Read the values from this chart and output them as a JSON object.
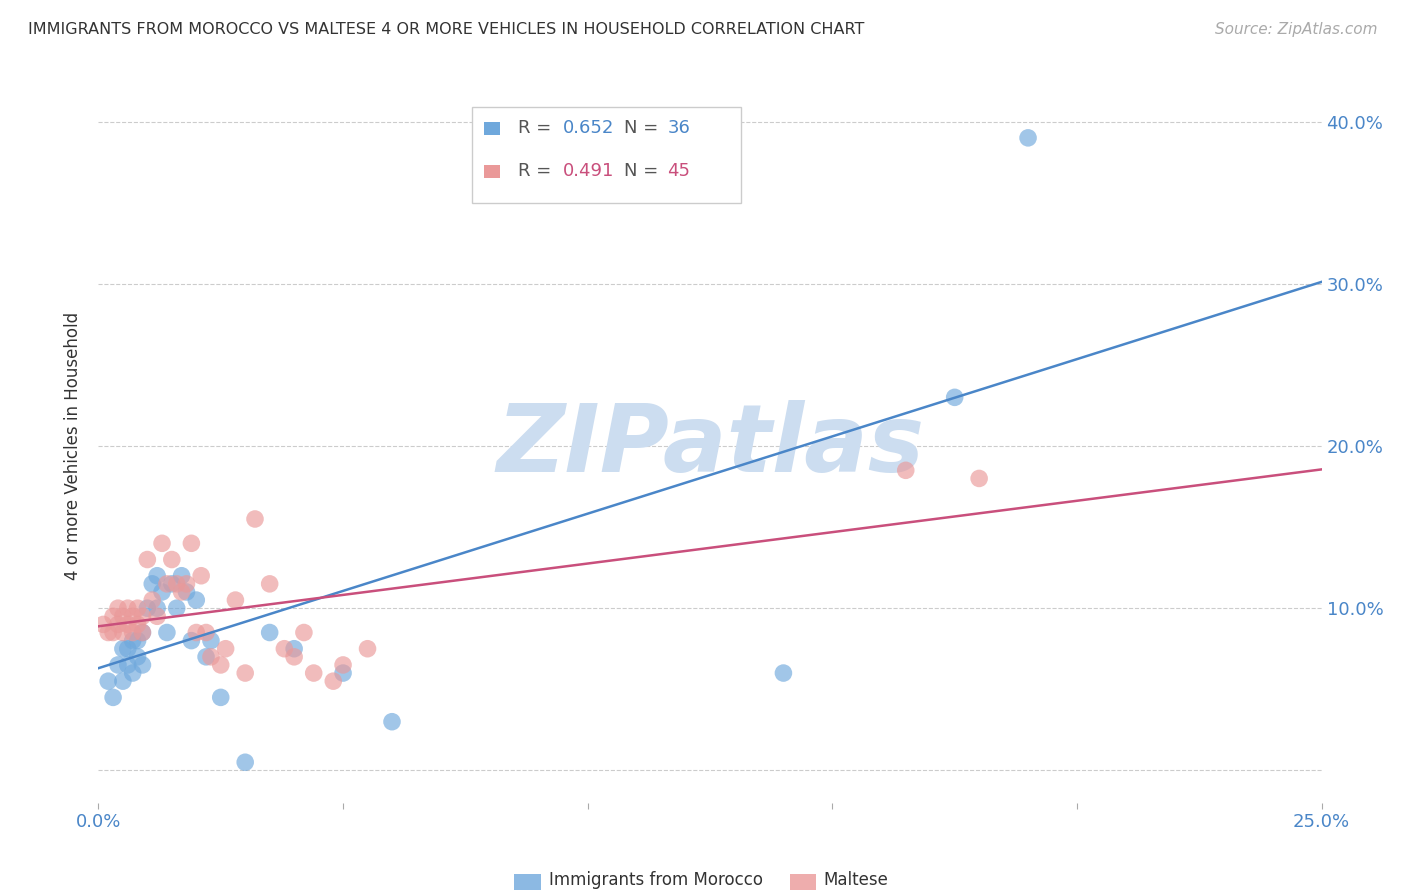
{
  "title": "IMMIGRANTS FROM MOROCCO VS MALTESE 4 OR MORE VEHICLES IN HOUSEHOLD CORRELATION CHART",
  "source": "Source: ZipAtlas.com",
  "ylabel": "4 or more Vehicles in Household",
  "xlim": [
    0.0,
    0.25
  ],
  "ylim": [
    -0.02,
    0.42
  ],
  "xticks": [
    0.0,
    0.05,
    0.1,
    0.15,
    0.2,
    0.25
  ],
  "xticklabels": [
    "0.0%",
    "",
    "",
    "",
    "",
    "25.0%"
  ],
  "yticks": [
    0.0,
    0.1,
    0.2,
    0.3,
    0.4
  ],
  "yticklabels": [
    "",
    "10.0%",
    "20.0%",
    "30.0%",
    "40.0%"
  ],
  "morocco_color": "#6fa8dc",
  "maltese_color": "#ea9999",
  "morocco_line_color": "#4a86c8",
  "maltese_line_color": "#c94f7c",
  "watermark": "ZIPatlas",
  "watermark_color": "#ccddf0",
  "morocco_scatter_x": [
    0.002,
    0.003,
    0.004,
    0.005,
    0.005,
    0.006,
    0.006,
    0.007,
    0.007,
    0.008,
    0.008,
    0.009,
    0.009,
    0.01,
    0.011,
    0.012,
    0.012,
    0.013,
    0.014,
    0.015,
    0.016,
    0.017,
    0.018,
    0.019,
    0.02,
    0.022,
    0.023,
    0.025,
    0.03,
    0.035,
    0.04,
    0.05,
    0.06,
    0.14,
    0.175,
    0.19
  ],
  "morocco_scatter_y": [
    0.055,
    0.045,
    0.065,
    0.055,
    0.075,
    0.065,
    0.075,
    0.06,
    0.08,
    0.07,
    0.08,
    0.065,
    0.085,
    0.1,
    0.115,
    0.1,
    0.12,
    0.11,
    0.085,
    0.115,
    0.1,
    0.12,
    0.11,
    0.08,
    0.105,
    0.07,
    0.08,
    0.045,
    0.005,
    0.085,
    0.075,
    0.06,
    0.03,
    0.06,
    0.23,
    0.39
  ],
  "maltese_scatter_x": [
    0.001,
    0.002,
    0.003,
    0.003,
    0.004,
    0.004,
    0.005,
    0.005,
    0.006,
    0.006,
    0.007,
    0.007,
    0.008,
    0.008,
    0.009,
    0.009,
    0.01,
    0.011,
    0.012,
    0.013,
    0.014,
    0.015,
    0.016,
    0.017,
    0.018,
    0.019,
    0.02,
    0.021,
    0.022,
    0.023,
    0.025,
    0.026,
    0.028,
    0.03,
    0.032,
    0.035,
    0.038,
    0.04,
    0.042,
    0.044,
    0.048,
    0.05,
    0.055,
    0.165,
    0.18
  ],
  "maltese_scatter_y": [
    0.09,
    0.085,
    0.095,
    0.085,
    0.09,
    0.1,
    0.095,
    0.085,
    0.09,
    0.1,
    0.095,
    0.085,
    0.1,
    0.09,
    0.095,
    0.085,
    0.13,
    0.105,
    0.095,
    0.14,
    0.115,
    0.13,
    0.115,
    0.11,
    0.115,
    0.14,
    0.085,
    0.12,
    0.085,
    0.07,
    0.065,
    0.075,
    0.105,
    0.06,
    0.155,
    0.115,
    0.075,
    0.07,
    0.085,
    0.06,
    0.055,
    0.065,
    0.075,
    0.185,
    0.18
  ],
  "background_color": "#ffffff",
  "grid_color": "#cccccc"
}
